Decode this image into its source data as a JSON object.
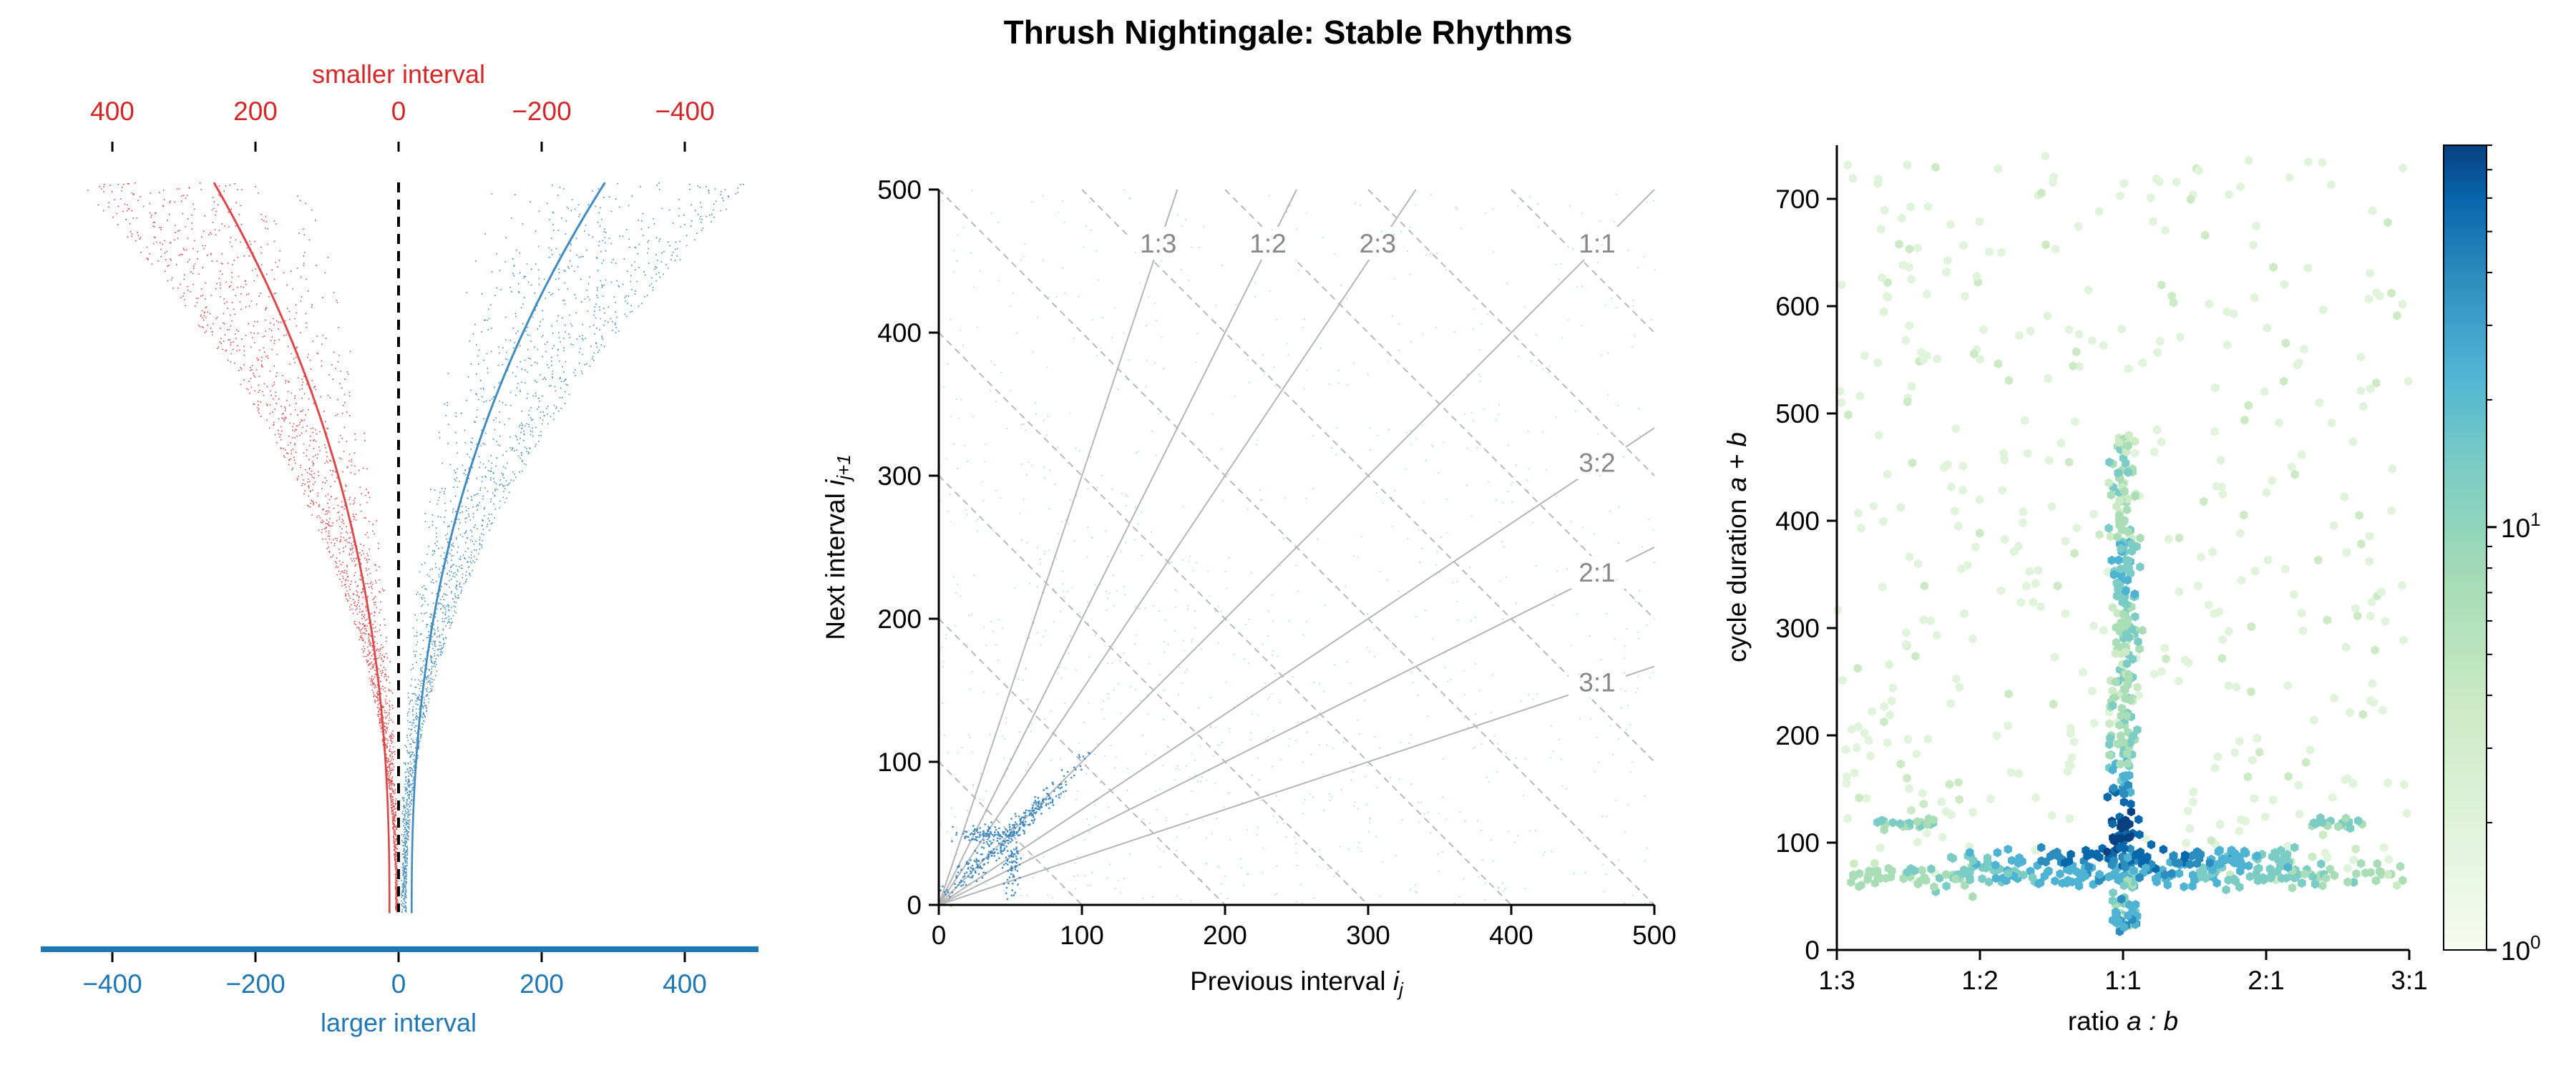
{
  "figure": {
    "title": "Thrush Nightingale: Stable Rhythms"
  },
  "colors": {
    "red": "#d62728",
    "blue": "#1f77b4",
    "ref_gray": "#b0b0b0",
    "label_gray": "#888888"
  },
  "chart_data": [
    {
      "id": "deviation-raster",
      "type": "scatter",
      "top_axis": {
        "label": "smaller interval",
        "ticks": [
          400,
          200,
          0,
          -200,
          -400
        ],
        "tick_labels": [
          "400",
          "200",
          "0",
          "−200",
          "−400"
        ],
        "range": [
          500,
          -500
        ],
        "color": "#d62728"
      },
      "bottom_axis": {
        "label": "larger interval",
        "ticks": [
          -400,
          -200,
          0,
          200,
          400
        ],
        "tick_labels": [
          "−400",
          "−200",
          "0",
          "200",
          "400"
        ],
        "range": [
          -500,
          500
        ],
        "color": "#1f77b4"
      },
      "series": [
        {
          "color": "#d62728",
          "side": "left",
          "x_envelope_at_top": -450,
          "x_envelope_at_bottom": -5
        },
        {
          "color": "#1f77b4",
          "side": "right",
          "x_envelope_at_top": 500,
          "x_envelope_at_bottom": 10
        }
      ],
      "zero_line": "dashed"
    },
    {
      "id": "return-map",
      "type": "scatter",
      "xlabel_prefix": "Previous interval ",
      "xlabel_var": "i",
      "xlabel_sub": "j",
      "ylabel_prefix": "Next interval ",
      "ylabel_var": "i",
      "ylabel_sub": "j+1",
      "xlim": [
        0,
        500
      ],
      "ylim": [
        0,
        500
      ],
      "xticks": [
        0,
        100,
        200,
        300,
        400,
        500
      ],
      "yticks": [
        0,
        100,
        200,
        300,
        400,
        500
      ],
      "ratio_lines": [
        {
          "label": "1:3",
          "slope": 3
        },
        {
          "label": "1:2",
          "slope": 2
        },
        {
          "label": "2:3",
          "slope": 1.5
        },
        {
          "label": "1:1",
          "slope": 1
        },
        {
          "label": "3:2",
          "slope": 0.6667
        },
        {
          "label": "2:1",
          "slope": 0.5
        },
        {
          "label": "3:1",
          "slope": 0.3333
        }
      ],
      "cycle_lines_sum": [
        100,
        200,
        300,
        400,
        500,
        600,
        700,
        800,
        900
      ],
      "clusters": [
        {
          "x": 55,
          "y": 55,
          "spread": 14,
          "n": 260,
          "orient": "diag"
        },
        {
          "x": 30,
          "y": 50,
          "spread": 10,
          "n": 90,
          "orient": "h"
        },
        {
          "x": 50,
          "y": 30,
          "spread": 10,
          "n": 70,
          "orient": "v"
        },
        {
          "x": 20,
          "y": 25,
          "spread": 10,
          "n": 60,
          "orient": "diag"
        }
      ]
    },
    {
      "id": "ratio-hexbin",
      "type": "heatmap",
      "xlabel_prefix": "ratio ",
      "xlabel_math": "a : b",
      "ylabel_prefix": "cycle duration ",
      "ylabel_math": "a + b",
      "xticks": [
        "1:3",
        "1:2",
        "1:1",
        "2:1",
        "3:1"
      ],
      "ylim": [
        0,
        750
      ],
      "yticks": [
        0,
        100,
        200,
        300,
        400,
        500,
        600,
        700
      ],
      "colorbar": {
        "scale": "log",
        "ticks_base": "10",
        "ticks_exp": [
          "0",
          "1"
        ],
        "range": [
          1,
          80
        ],
        "colormap": "GnBu"
      },
      "features": [
        {
          "kind": "horizontal-band",
          "y": 70,
          "x_from": 0,
          "x_to": 1,
          "level": "medium"
        },
        {
          "kind": "horizontal-band",
          "y": 85,
          "x_from": 0.2,
          "x_to": 0.8,
          "level": "high"
        },
        {
          "kind": "vertical-band",
          "x": 0.5,
          "y_from": 20,
          "y_to": 480,
          "level": "medium"
        },
        {
          "kind": "peak",
          "x": 0.5,
          "y": 110,
          "level": "max"
        },
        {
          "kind": "low-point",
          "x": 0.5,
          "y": 30,
          "level": "medium"
        }
      ]
    }
  ]
}
